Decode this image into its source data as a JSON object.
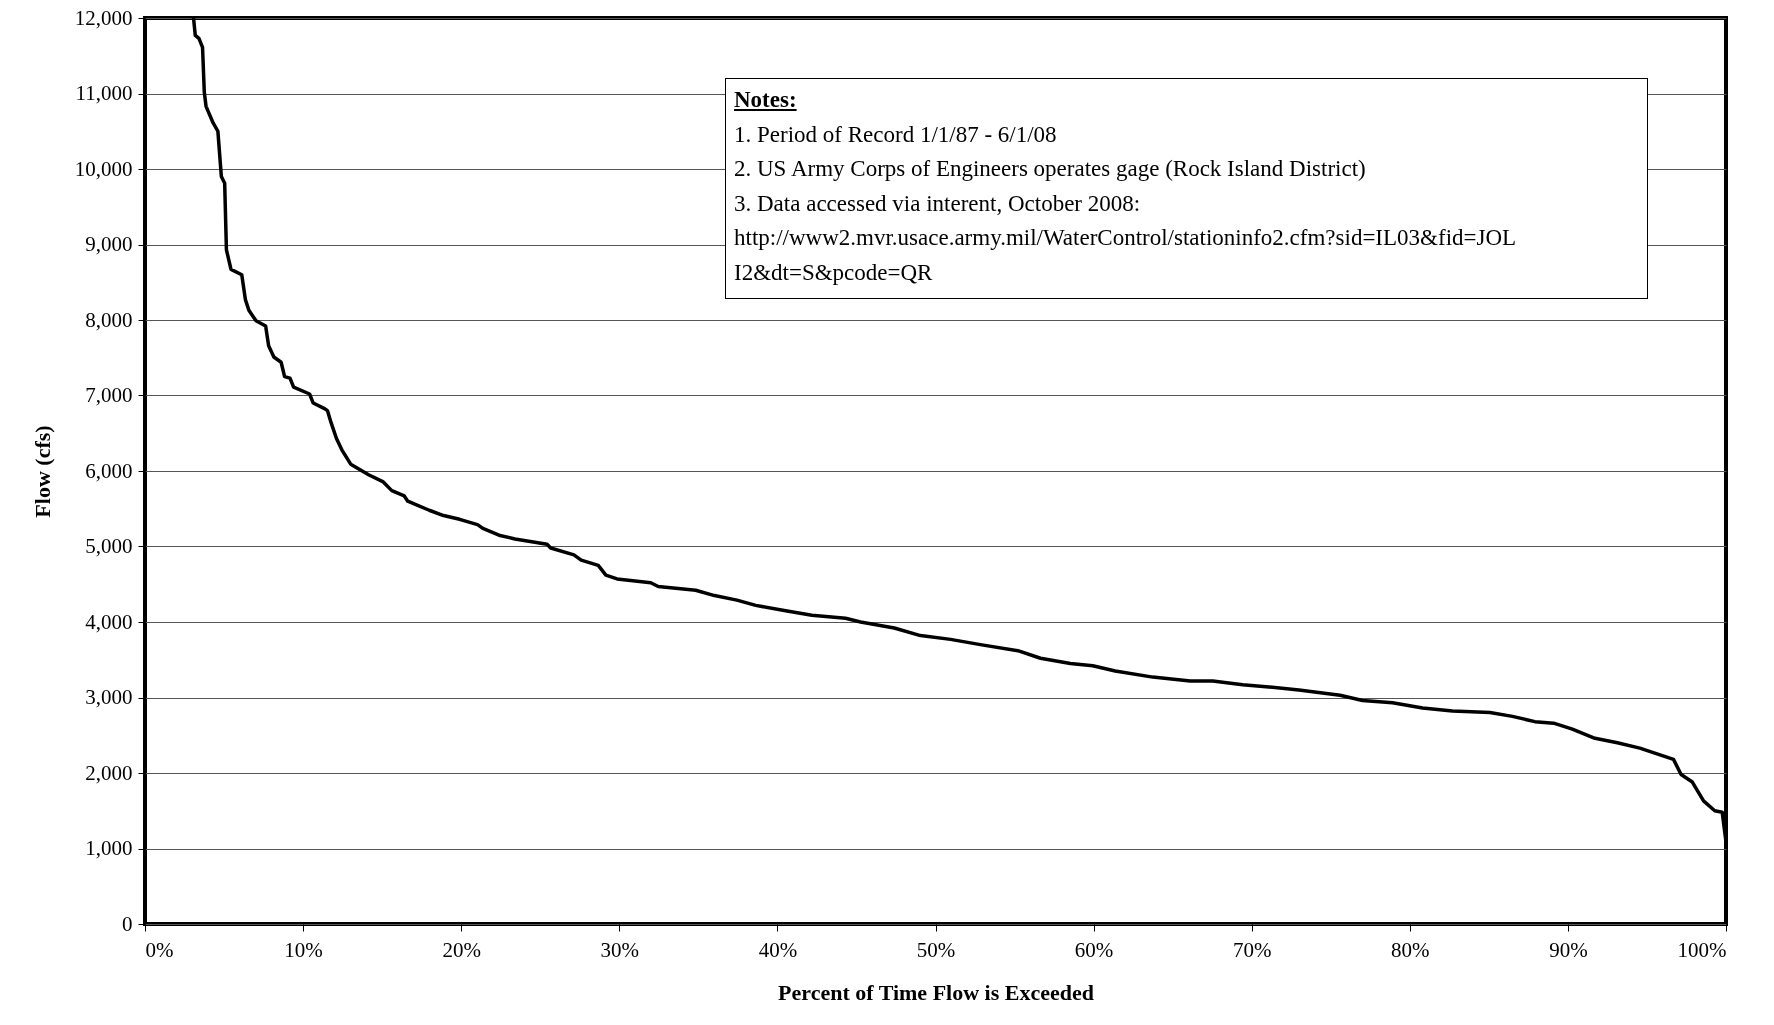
{
  "chart_data": {
    "type": "line",
    "xlabel": "Percent of Time Flow is Exceeded",
    "ylabel": "Flow (cfs)",
    "xlim": [
      0,
      100
    ],
    "xticks": [
      {
        "value": 0,
        "label": "0%"
      },
      {
        "value": 10,
        "label": "10%"
      },
      {
        "value": 20,
        "label": "20%"
      },
      {
        "value": 30,
        "label": "30%"
      },
      {
        "value": 40,
        "label": "40%"
      },
      {
        "value": 50,
        "label": "50%"
      },
      {
        "value": 60,
        "label": "60%"
      },
      {
        "value": 70,
        "label": "70%"
      },
      {
        "value": 80,
        "label": "80%"
      },
      {
        "value": 90,
        "label": "90%"
      },
      {
        "value": 100,
        "label": "100%"
      }
    ],
    "ylim": [
      0,
      12000
    ],
    "yticks": [
      0,
      {
        "value": 1000,
        "label": "1,000"
      },
      {
        "value": 2000,
        "label": "2,000"
      },
      {
        "value": 3000,
        "label": "3,000"
      },
      {
        "value": 4000,
        "label": "4,000"
      },
      {
        "value": 5000,
        "label": "5,000"
      },
      {
        "value": 6000,
        "label": "6,000"
      },
      {
        "value": 7000,
        "label": "7,000"
      },
      {
        "value": 8000,
        "label": "8,000"
      },
      {
        "value": 9000,
        "label": "9,000"
      },
      {
        "value": 10000,
        "label": "10,000"
      },
      {
        "value": 11000,
        "label": "11,000"
      },
      {
        "value": 12000,
        "label": "12,000"
      }
    ],
    "grid": "y",
    "line_style": "solid",
    "marker": "none",
    "annotations": [
      "Notes:",
      "1. Period of Record 1/1/87 - 6/1/08",
      "2. US Army Corps of Engineers operates gage (Rock Island District)",
      "3. Data accessed via interent, October 2008:",
      "http://www2.mvr.usace.army.mil/WaterControl/stationinfo2.cfm?sid=IL03&fid=JOLI2&dt=S&pcode=QR"
    ],
    "series": [
      {
        "color": "#000000",
        "x": [
          3.07,
          3.18,
          3.41,
          3.64,
          3.75,
          3.86,
          4.31,
          4.61,
          4.83,
          5.04,
          5.15,
          5.44,
          6.12,
          6.35,
          6.57,
          7.02,
          7.63,
          7.82,
          8.15,
          8.61,
          8.83,
          9.17,
          9.4,
          10.41,
          10.64,
          11.32,
          11.54,
          11.77,
          12.11,
          12.45,
          13.01,
          13.58,
          14.14,
          15.04,
          15.61,
          16.4,
          16.62,
          17.98,
          18.88,
          19.9,
          21.03,
          21.37,
          22.39,
          23.4,
          25.43,
          25.66,
          27.13,
          27.59,
          28.67,
          29.15,
          29.86,
          31.99,
          32.46,
          34.83,
          36.02,
          37.44,
          38.63,
          40.52,
          42.18,
          44.31,
          45.26,
          47.39,
          49.05,
          50.95,
          52.84,
          55.21,
          56.64,
          58.53,
          59.95,
          61.37,
          63.74,
          66.11,
          67.54,
          69.43,
          71.09,
          72.99,
          75.59,
          77.01,
          78.91,
          80.81,
          82.7,
          85.07,
          86.49,
          87.91,
          89.1,
          90.28,
          91.71,
          93.13,
          94.55,
          95.97,
          96.68,
          97.16,
          97.87,
          98.58,
          99.29,
          99.76,
          100
        ],
        "values": [
          12000,
          11770,
          11730,
          11610,
          11020,
          10830,
          10610,
          10500,
          9900,
          9810,
          8930,
          8670,
          8600,
          8270,
          8130,
          7990,
          7920,
          7660,
          7510,
          7440,
          7250,
          7230,
          7110,
          7020,
          6900,
          6830,
          6800,
          6640,
          6430,
          6280,
          6090,
          6020,
          5950,
          5860,
          5740,
          5670,
          5600,
          5480,
          5410,
          5360,
          5290,
          5240,
          5150,
          5100,
          5030,
          4980,
          4890,
          4820,
          4750,
          4620,
          4570,
          4520,
          4470,
          4420,
          4350,
          4290,
          4220,
          4150,
          4090,
          4050,
          4000,
          3920,
          3820,
          3770,
          3700,
          3620,
          3520,
          3450,
          3420,
          3350,
          3270,
          3220,
          3220,
          3170,
          3140,
          3100,
          3030,
          2960,
          2930,
          2860,
          2820,
          2800,
          2750,
          2680,
          2660,
          2580,
          2460,
          2400,
          2330,
          2230,
          2180,
          1980,
          1880,
          1630,
          1500,
          1480,
          1090
        ]
      }
    ]
  }
}
